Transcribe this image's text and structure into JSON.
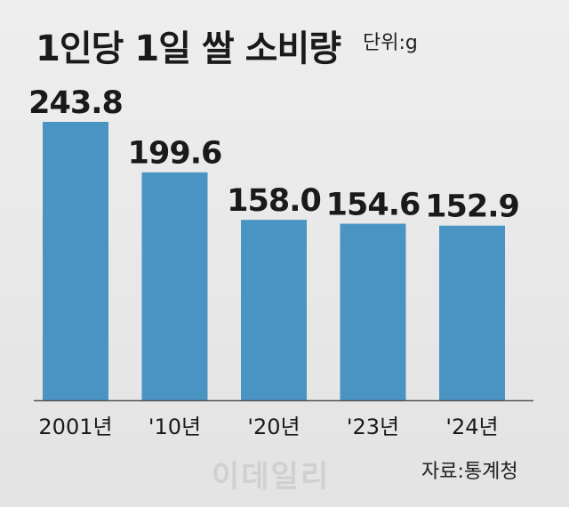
{
  "chart_data": {
    "type": "bar",
    "title": "1인당 1일 쌀 소비량",
    "unit_label": "단위:g",
    "categories": [
      "2001년",
      "'10년",
      "'20년",
      "'23년",
      "'24년"
    ],
    "values": [
      243.8,
      199.6,
      158.0,
      154.6,
      152.9
    ],
    "value_labels": [
      "243.8",
      "199.6",
      "158.0",
      "154.6",
      "152.9"
    ],
    "ylim": [
      0,
      243.8
    ],
    "grid": false,
    "bar_color": "#4a94c4",
    "axis_color": "#555555"
  },
  "source": "자료:통계청",
  "watermark": "이데일리"
}
